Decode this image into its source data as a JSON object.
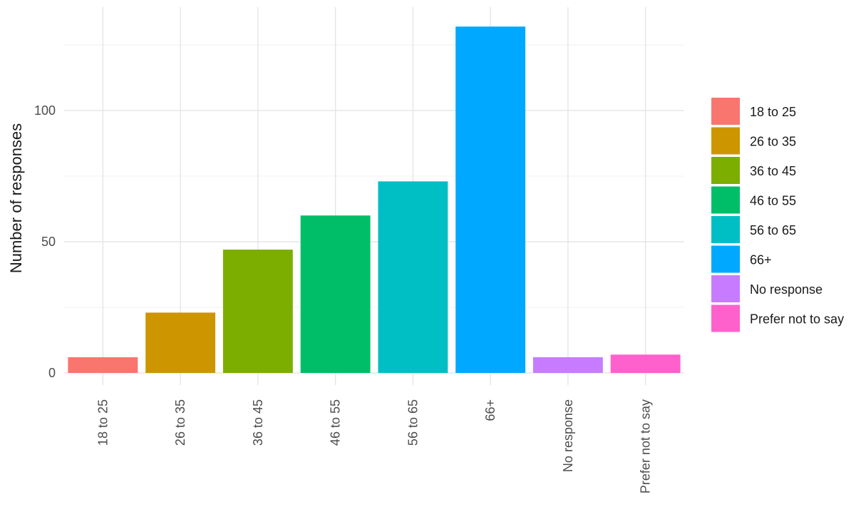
{
  "chart_data": {
    "type": "bar",
    "title": "",
    "xlabel": "",
    "ylabel": "Number of responses",
    "categories": [
      "18 to 25",
      "26 to 35",
      "36 to 45",
      "46 to 55",
      "56 to 65",
      "66+",
      "No response",
      "Prefer not to say"
    ],
    "values": [
      6,
      23,
      47,
      60,
      73,
      132,
      6,
      7
    ],
    "colors": [
      "#F8766D",
      "#CD9600",
      "#7CAE00",
      "#00BE67",
      "#00BFC4",
      "#00A9FF",
      "#C77CFF",
      "#FF61CC"
    ],
    "ylim": [
      0,
      134
    ],
    "yticks": [
      0,
      50,
      100
    ],
    "grid": true,
    "legend": {
      "placement": "right",
      "entries": [
        "18 to 25",
        "26 to 35",
        "36 to 45",
        "46 to 55",
        "56 to 65",
        "66+",
        "No response",
        "Prefer not to say"
      ]
    }
  }
}
